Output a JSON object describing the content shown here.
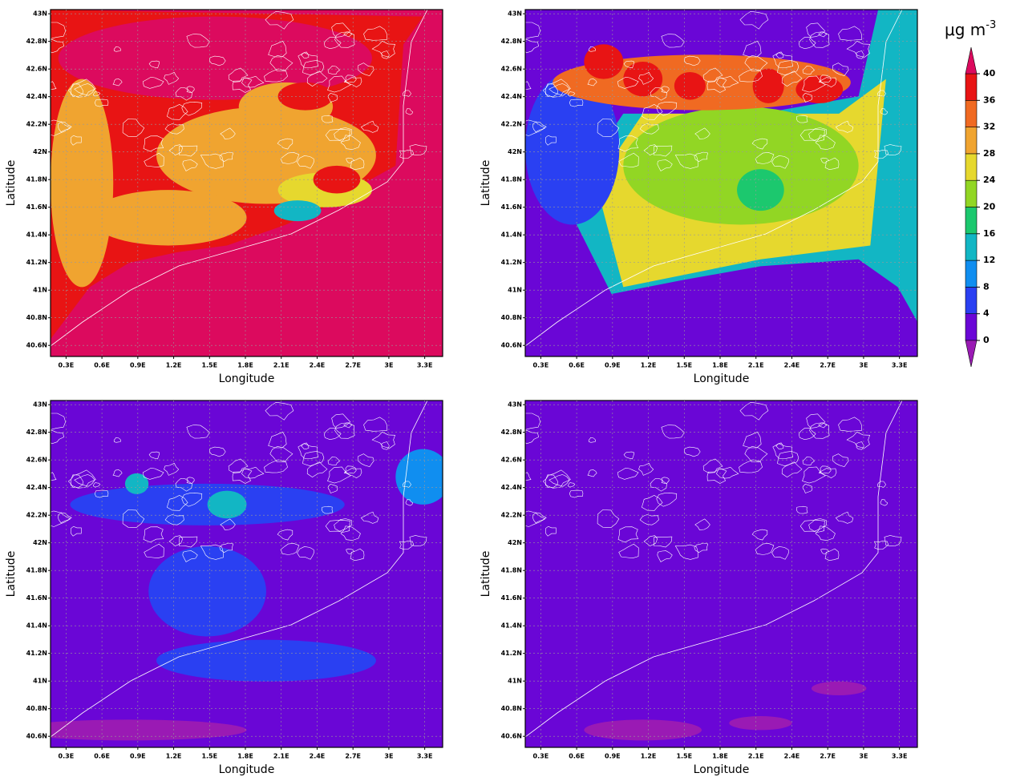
{
  "panels": [
    {
      "x_label": "Longitude",
      "y_label": "Latitude"
    },
    {
      "x_label": "Longitude",
      "y_label": "Latitude"
    },
    {
      "x_label": "Longitude",
      "y_label": "Latitude"
    },
    {
      "x_label": "Longitude",
      "y_label": "Latitude"
    }
  ],
  "axes": {
    "xlim": [
      0.17,
      3.45
    ],
    "ylim": [
      40.52,
      43.03
    ],
    "grid": true,
    "xticks": [
      {
        "value": 0.3,
        "label": "0.3E"
      },
      {
        "value": 0.6,
        "label": "0.6E"
      },
      {
        "value": 0.9,
        "label": "0.9E"
      },
      {
        "value": 1.2,
        "label": "1.2E"
      },
      {
        "value": 1.5,
        "label": "1.5E"
      },
      {
        "value": 1.8,
        "label": "1.8E"
      },
      {
        "value": 2.1,
        "label": "2.1E"
      },
      {
        "value": 2.4,
        "label": "2.4E"
      },
      {
        "value": 2.7,
        "label": "2.7E"
      },
      {
        "value": 3,
        "label": "3E"
      },
      {
        "value": 3.3,
        "label": "3.3E"
      }
    ],
    "yticks": [
      {
        "value": 43,
        "label": "43N"
      },
      {
        "value": 42.8,
        "label": "42.8N"
      },
      {
        "value": 42.6,
        "label": "42.6N"
      },
      {
        "value": 42.4,
        "label": "42.4N"
      },
      {
        "value": 42.2,
        "label": "42.2N"
      },
      {
        "value": 42,
        "label": "42N"
      },
      {
        "value": 41.8,
        "label": "41.8N"
      },
      {
        "value": 41.6,
        "label": "41.6N"
      },
      {
        "value": 41.4,
        "label": "41.4N"
      },
      {
        "value": 41.2,
        "label": "41.2N"
      },
      {
        "value": 41,
        "label": "41N"
      },
      {
        "value": 40.8,
        "label": "40.8N"
      },
      {
        "value": 40.6,
        "label": "40.6N"
      }
    ]
  },
  "colorbar": {
    "unit": "μg m",
    "unit_exponent": "-3",
    "ticks": [
      0,
      4,
      8,
      12,
      16,
      20,
      24,
      28,
      32,
      36,
      40
    ],
    "colors": [
      "#6a06d6",
      "#2a40f2",
      "#108ef0",
      "#12b6c4",
      "#1cc86e",
      "#92d624",
      "#e6d82e",
      "#f0a430",
      "#f06a22",
      "#e81414"
    ],
    "under_color": "#9a1ab4",
    "over_color": "#dc0a5e"
  }
}
